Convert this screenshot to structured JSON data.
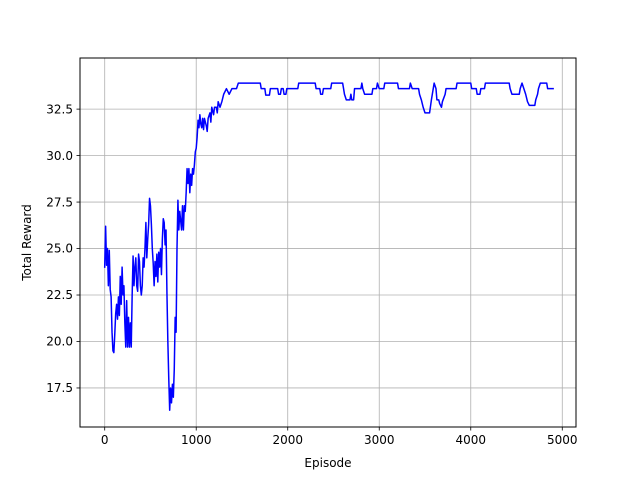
{
  "chart_data": {
    "type": "line",
    "title": "",
    "xlabel": "Episode",
    "ylabel": "Total Reward",
    "xlim": [
      -270,
      5150
    ],
    "ylim": [
      15.4,
      35.25
    ],
    "xticks": [
      0,
      1000,
      2000,
      3000,
      4000,
      5000
    ],
    "xtick_labels": [
      "0",
      "1000",
      "2000",
      "3000",
      "4000",
      "5000"
    ],
    "yticks": [
      17.5,
      20.0,
      22.5,
      25.0,
      27.5,
      30.0,
      32.5
    ],
    "ytick_labels": [
      "17.5",
      "20.0",
      "22.5",
      "25.0",
      "27.5",
      "30.0",
      "32.5"
    ],
    "grid": true,
    "legend": "none",
    "series": [
      {
        "color": "#0000ff",
        "points": [
          [
            0,
            24.0
          ],
          [
            10,
            26.2
          ],
          [
            20,
            24.1
          ],
          [
            30,
            25.0
          ],
          [
            40,
            23.0
          ],
          [
            50,
            24.9
          ],
          [
            60,
            22.8
          ],
          [
            70,
            22.4
          ],
          [
            80,
            20.5
          ],
          [
            90,
            19.5
          ],
          [
            100,
            19.4
          ],
          [
            110,
            20.4
          ],
          [
            120,
            21.5
          ],
          [
            130,
            22.0
          ],
          [
            140,
            21.2
          ],
          [
            150,
            22.4
          ],
          [
            160,
            21.4
          ],
          [
            170,
            23.5
          ],
          [
            180,
            22.0
          ],
          [
            190,
            24.0
          ],
          [
            200,
            22.5
          ],
          [
            210,
            23.0
          ],
          [
            220,
            21.0
          ],
          [
            230,
            19.7
          ],
          [
            240,
            22.2
          ],
          [
            250,
            19.7
          ],
          [
            260,
            21.3
          ],
          [
            270,
            19.7
          ],
          [
            280,
            21.0
          ],
          [
            290,
            19.7
          ],
          [
            300,
            22.5
          ],
          [
            310,
            24.6
          ],
          [
            320,
            23.0
          ],
          [
            330,
            24.0
          ],
          [
            340,
            24.5
          ],
          [
            350,
            23.0
          ],
          [
            360,
            22.7
          ],
          [
            370,
            24.7
          ],
          [
            380,
            24.3
          ],
          [
            390,
            23.0
          ],
          [
            400,
            22.5
          ],
          [
            410,
            23.0
          ],
          [
            420,
            24.5
          ],
          [
            430,
            24.0
          ],
          [
            440,
            25.0
          ],
          [
            450,
            26.4
          ],
          [
            460,
            24.5
          ],
          [
            470,
            25.5
          ],
          [
            480,
            26.3
          ],
          [
            490,
            27.7
          ],
          [
            500,
            27.3
          ],
          [
            510,
            26.3
          ],
          [
            520,
            25.0
          ],
          [
            530,
            24.2
          ],
          [
            540,
            23.0
          ],
          [
            550,
            24.3
          ],
          [
            560,
            23.5
          ],
          [
            570,
            24.7
          ],
          [
            580,
            23.2
          ],
          [
            590,
            24.8
          ],
          [
            600,
            24.0
          ],
          [
            610,
            25.0
          ],
          [
            620,
            23.6
          ],
          [
            630,
            25.5
          ],
          [
            640,
            26.6
          ],
          [
            650,
            26.4
          ],
          [
            660,
            25.2
          ],
          [
            670,
            26.0
          ],
          [
            680,
            22.6
          ],
          [
            690,
            20.0
          ],
          [
            700,
            18.0
          ],
          [
            710,
            16.3
          ],
          [
            720,
            17.5
          ],
          [
            730,
            16.7
          ],
          [
            740,
            17.7
          ],
          [
            750,
            17.0
          ],
          [
            760,
            18.5
          ],
          [
            770,
            21.3
          ],
          [
            780,
            20.5
          ],
          [
            790,
            25.0
          ],
          [
            800,
            27.6
          ],
          [
            810,
            26.0
          ],
          [
            820,
            27.0
          ],
          [
            830,
            26.5
          ],
          [
            840,
            26.0
          ],
          [
            850,
            27.3
          ],
          [
            860,
            26.0
          ],
          [
            870,
            27.3
          ],
          [
            880,
            27.0
          ],
          [
            890,
            28.0
          ],
          [
            900,
            29.3
          ],
          [
            910,
            28.5
          ],
          [
            920,
            29.3
          ],
          [
            930,
            28.0
          ],
          [
            940,
            29.0
          ],
          [
            950,
            28.4
          ],
          [
            960,
            29.3
          ],
          [
            970,
            29.0
          ],
          [
            980,
            29.5
          ],
          [
            990,
            30.2
          ],
          [
            1000,
            30.4
          ],
          [
            1010,
            31.0
          ],
          [
            1020,
            31.9
          ],
          [
            1030,
            31.5
          ],
          [
            1040,
            32.2
          ],
          [
            1050,
            31.7
          ],
          [
            1060,
            31.5
          ],
          [
            1070,
            32.0
          ],
          [
            1080,
            31.4
          ],
          [
            1090,
            32.0
          ],
          [
            1110,
            31.6
          ],
          [
            1120,
            31.3
          ],
          [
            1130,
            32.0
          ],
          [
            1150,
            32.3
          ],
          [
            1160,
            31.8
          ],
          [
            1170,
            32.6
          ],
          [
            1190,
            32.2
          ],
          [
            1200,
            32.6
          ],
          [
            1220,
            32.6
          ],
          [
            1230,
            32.3
          ],
          [
            1240,
            32.9
          ],
          [
            1260,
            32.6
          ],
          [
            1280,
            32.9
          ],
          [
            1300,
            33.3
          ],
          [
            1330,
            33.6
          ],
          [
            1360,
            33.3
          ],
          [
            1390,
            33.6
          ],
          [
            1440,
            33.6
          ],
          [
            1460,
            33.9
          ],
          [
            1700,
            33.9
          ],
          [
            1710,
            33.6
          ],
          [
            1750,
            33.6
          ],
          [
            1760,
            33.25
          ],
          [
            1800,
            33.25
          ],
          [
            1810,
            33.6
          ],
          [
            1890,
            33.6
          ],
          [
            1900,
            33.3
          ],
          [
            1920,
            33.3
          ],
          [
            1930,
            33.6
          ],
          [
            1950,
            33.6
          ],
          [
            1960,
            33.3
          ],
          [
            1980,
            33.3
          ],
          [
            1990,
            33.6
          ],
          [
            2110,
            33.6
          ],
          [
            2120,
            33.9
          ],
          [
            2300,
            33.9
          ],
          [
            2310,
            33.6
          ],
          [
            2350,
            33.6
          ],
          [
            2360,
            33.3
          ],
          [
            2380,
            33.3
          ],
          [
            2390,
            33.6
          ],
          [
            2470,
            33.6
          ],
          [
            2480,
            33.9
          ],
          [
            2600,
            33.9
          ],
          [
            2610,
            33.6
          ],
          [
            2620,
            33.3
          ],
          [
            2640,
            33.0
          ],
          [
            2680,
            33.0
          ],
          [
            2690,
            33.3
          ],
          [
            2700,
            33.0
          ],
          [
            2720,
            33.0
          ],
          [
            2730,
            33.6
          ],
          [
            2800,
            33.6
          ],
          [
            2810,
            33.9
          ],
          [
            2820,
            33.6
          ],
          [
            2840,
            33.3
          ],
          [
            2920,
            33.3
          ],
          [
            2930,
            33.6
          ],
          [
            2970,
            33.6
          ],
          [
            2980,
            33.9
          ],
          [
            3000,
            33.6
          ],
          [
            3050,
            33.6
          ],
          [
            3060,
            33.9
          ],
          [
            3200,
            33.9
          ],
          [
            3210,
            33.6
          ],
          [
            3330,
            33.6
          ],
          [
            3340,
            33.9
          ],
          [
            3360,
            33.6
          ],
          [
            3430,
            33.6
          ],
          [
            3440,
            33.3
          ],
          [
            3460,
            33.0
          ],
          [
            3480,
            32.6
          ],
          [
            3500,
            32.3
          ],
          [
            3550,
            32.3
          ],
          [
            3570,
            33.0
          ],
          [
            3580,
            33.3
          ],
          [
            3600,
            33.9
          ],
          [
            3620,
            33.6
          ],
          [
            3630,
            33.0
          ],
          [
            3650,
            33.0
          ],
          [
            3660,
            32.8
          ],
          [
            3680,
            32.6
          ],
          [
            3690,
            32.9
          ],
          [
            3720,
            33.3
          ],
          [
            3730,
            33.6
          ],
          [
            3840,
            33.6
          ],
          [
            3850,
            33.9
          ],
          [
            4000,
            33.9
          ],
          [
            4010,
            33.6
          ],
          [
            4060,
            33.6
          ],
          [
            4070,
            33.3
          ],
          [
            4100,
            33.3
          ],
          [
            4110,
            33.6
          ],
          [
            4150,
            33.6
          ],
          [
            4160,
            33.9
          ],
          [
            4420,
            33.9
          ],
          [
            4430,
            33.6
          ],
          [
            4450,
            33.3
          ],
          [
            4530,
            33.3
          ],
          [
            4540,
            33.6
          ],
          [
            4560,
            33.9
          ],
          [
            4580,
            33.6
          ],
          [
            4600,
            33.3
          ],
          [
            4620,
            32.9
          ],
          [
            4640,
            32.7
          ],
          [
            4700,
            32.7
          ],
          [
            4710,
            33.0
          ],
          [
            4730,
            33.3
          ],
          [
            4740,
            33.6
          ],
          [
            4760,
            33.9
          ],
          [
            4830,
            33.9
          ],
          [
            4840,
            33.6
          ],
          [
            4900,
            33.6
          ]
        ]
      }
    ]
  }
}
